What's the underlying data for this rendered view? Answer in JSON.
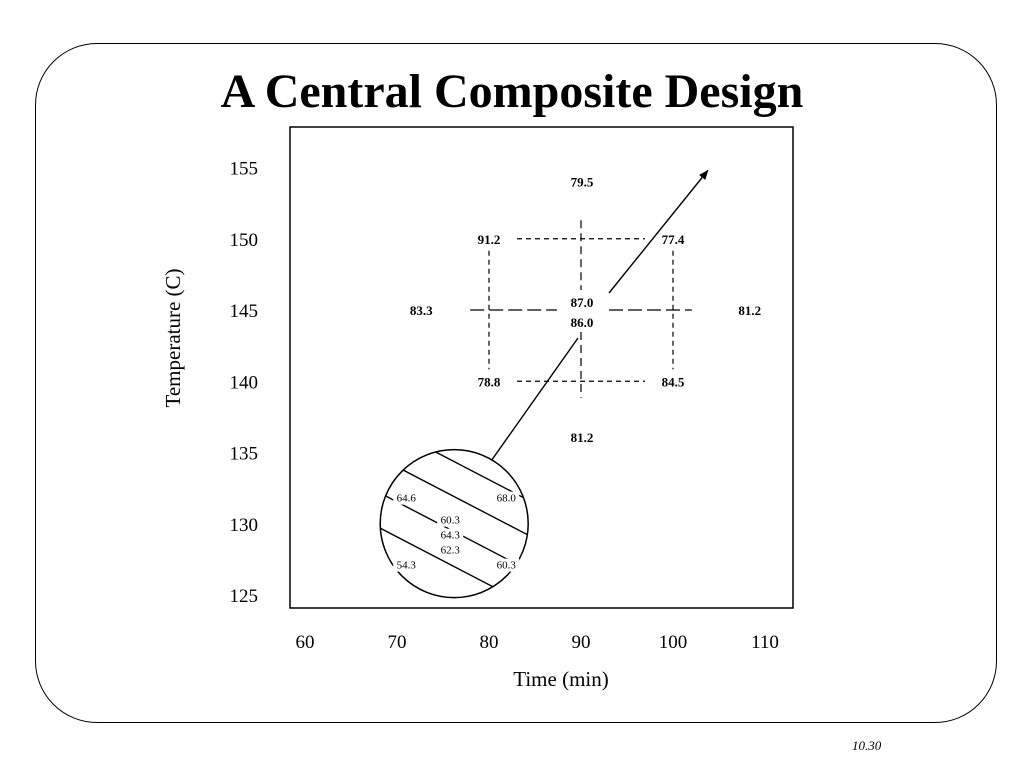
{
  "title": "A Central Composite Design",
  "page_number": "10.30",
  "colors": {
    "ink": "#000000",
    "background": "#ffffff"
  },
  "chart_data": {
    "type": "scatter",
    "title": "A Central Composite Design",
    "xlabel": "Time (min)",
    "ylabel": "Temperature (C)",
    "xlim": [
      60,
      115
    ],
    "ylim": [
      123,
      156
    ],
    "x_ticks": [
      "60",
      "70",
      "80",
      "90",
      "100",
      "110"
    ],
    "y_ticks": [
      "125",
      "130",
      "135",
      "140",
      "145",
      "150",
      "155"
    ],
    "grid": false,
    "design_points": [
      {
        "x": 80,
        "y": 150,
        "label": "91.2"
      },
      {
        "x": 100,
        "y": 150,
        "label": "77.4"
      },
      {
        "x": 80,
        "y": 140,
        "label": "78.8"
      },
      {
        "x": 100,
        "y": 140,
        "label": "84.5"
      },
      {
        "x": 90,
        "y": 152,
        "label": "79.5"
      },
      {
        "x": 90,
        "y": 138,
        "label": "81.2"
      },
      {
        "x": 76,
        "y": 145,
        "label": "83.3"
      },
      {
        "x": 104,
        "y": 145,
        "label": "81.2"
      },
      {
        "x": 90,
        "y": 145,
        "label": "87.0"
      },
      {
        "x": 90,
        "y": 145,
        "label": "86.0"
      }
    ],
    "path_of_steepest_ascent": [
      {
        "x": 76.5,
        "y": 131
      },
      {
        "x": 90,
        "y": 145
      },
      {
        "x": 104,
        "y": 155
      }
    ],
    "contour_region": {
      "center": {
        "x": 76,
        "y": 130.5
      },
      "contour_labels": [
        "64.6",
        "68.0",
        "60.3",
        "64.3",
        "62.3",
        "54.3",
        "60.3"
      ]
    }
  }
}
